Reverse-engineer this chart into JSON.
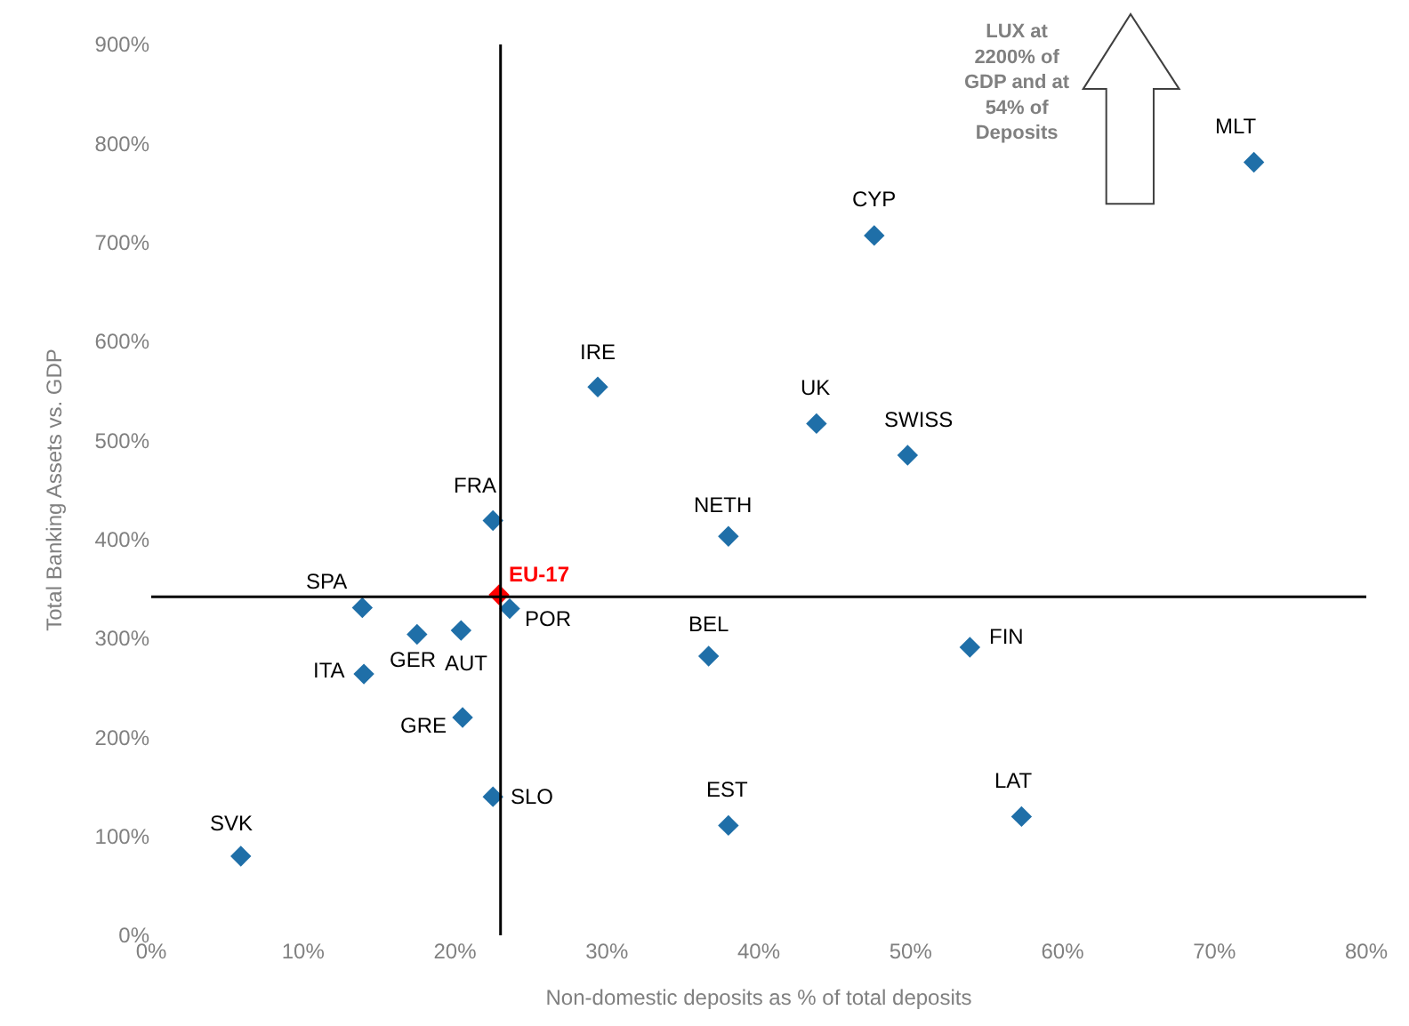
{
  "chart_data": {
    "type": "scatter",
    "xlabel": "Non-domestic deposits as % of total deposits",
    "ylabel": "Total Banking Assets vs. GDP",
    "xlim": [
      0,
      80
    ],
    "xticks": [
      {
        "value": 0,
        "label": "0%"
      },
      {
        "value": 10,
        "label": "10%"
      },
      {
        "value": 20,
        "label": "20%"
      },
      {
        "value": 30,
        "label": "30%"
      },
      {
        "value": 40,
        "label": "40%"
      },
      {
        "value": 50,
        "label": "50%"
      },
      {
        "value": 60,
        "label": "60%"
      },
      {
        "value": 70,
        "label": "70%"
      },
      {
        "value": 80,
        "label": "80%"
      }
    ],
    "ylim": [
      0,
      900
    ],
    "yticks": [
      {
        "value": 0,
        "label": "0%"
      },
      {
        "value": 100,
        "label": "100%"
      },
      {
        "value": 200,
        "label": "200%"
      },
      {
        "value": 300,
        "label": "300%"
      },
      {
        "value": 400,
        "label": "400%"
      },
      {
        "value": 500,
        "label": "500%"
      },
      {
        "value": 600,
        "label": "600%"
      },
      {
        "value": 700,
        "label": "700%"
      },
      {
        "value": 800,
        "label": "800%"
      },
      {
        "value": 900,
        "label": "900%"
      }
    ],
    "marker": "diamond",
    "series": [
      {
        "color": "#1f6fa8",
        "x": [
          5.9,
          13.9,
          14.0,
          17.5,
          20.4,
          20.5,
          22.5,
          22.5,
          23.6,
          29.4,
          36.7,
          38.0,
          38.0,
          43.8,
          47.6,
          49.8,
          53.9,
          57.3,
          72.6
        ],
        "values": [
          80,
          331,
          264,
          304,
          308,
          220,
          140,
          419,
          330,
          554,
          282,
          403,
          111,
          517,
          707,
          485,
          291,
          120,
          781
        ]
      },
      {
        "name": "EU-17",
        "color": "#ff0000",
        "x": [
          22.9
        ],
        "values": [
          344
        ]
      }
    ],
    "ref_lines": [
      {
        "axis": "x",
        "value": 23,
        "color": "#000000"
      },
      {
        "axis": "y",
        "value": 342,
        "color": "#000000"
      }
    ],
    "annotations": [
      {
        "text": "SVK",
        "x": 5.9,
        "y": 80
      },
      {
        "text": "SPA",
        "x": 13.9,
        "y": 331
      },
      {
        "text": "ITA",
        "x": 14.0,
        "y": 264
      },
      {
        "text": "GER",
        "x": 17.5,
        "y": 304
      },
      {
        "text": "AUT",
        "x": 20.4,
        "y": 308
      },
      {
        "text": "GRE",
        "x": 20.5,
        "y": 220
      },
      {
        "text": "SLO",
        "x": 22.5,
        "y": 140
      },
      {
        "text": "FRA",
        "x": 22.5,
        "y": 419
      },
      {
        "text": "POR",
        "x": 23.6,
        "y": 330
      },
      {
        "text": "IRE",
        "x": 29.4,
        "y": 554
      },
      {
        "text": "BEL",
        "x": 36.7,
        "y": 282
      },
      {
        "text": "NETH",
        "x": 38.0,
        "y": 403
      },
      {
        "text": "EST",
        "x": 38.0,
        "y": 111
      },
      {
        "text": "UK",
        "x": 43.8,
        "y": 517
      },
      {
        "text": "CYP",
        "x": 47.6,
        "y": 707
      },
      {
        "text": "SWISS",
        "x": 49.8,
        "y": 485
      },
      {
        "text": "FIN",
        "x": 53.9,
        "y": 291
      },
      {
        "text": "LAT",
        "x": 57.3,
        "y": 120
      },
      {
        "text": "MLT",
        "x": 72.6,
        "y": 781
      },
      "LUX at 2200% of GDP and at 54% of Deposits"
    ]
  }
}
